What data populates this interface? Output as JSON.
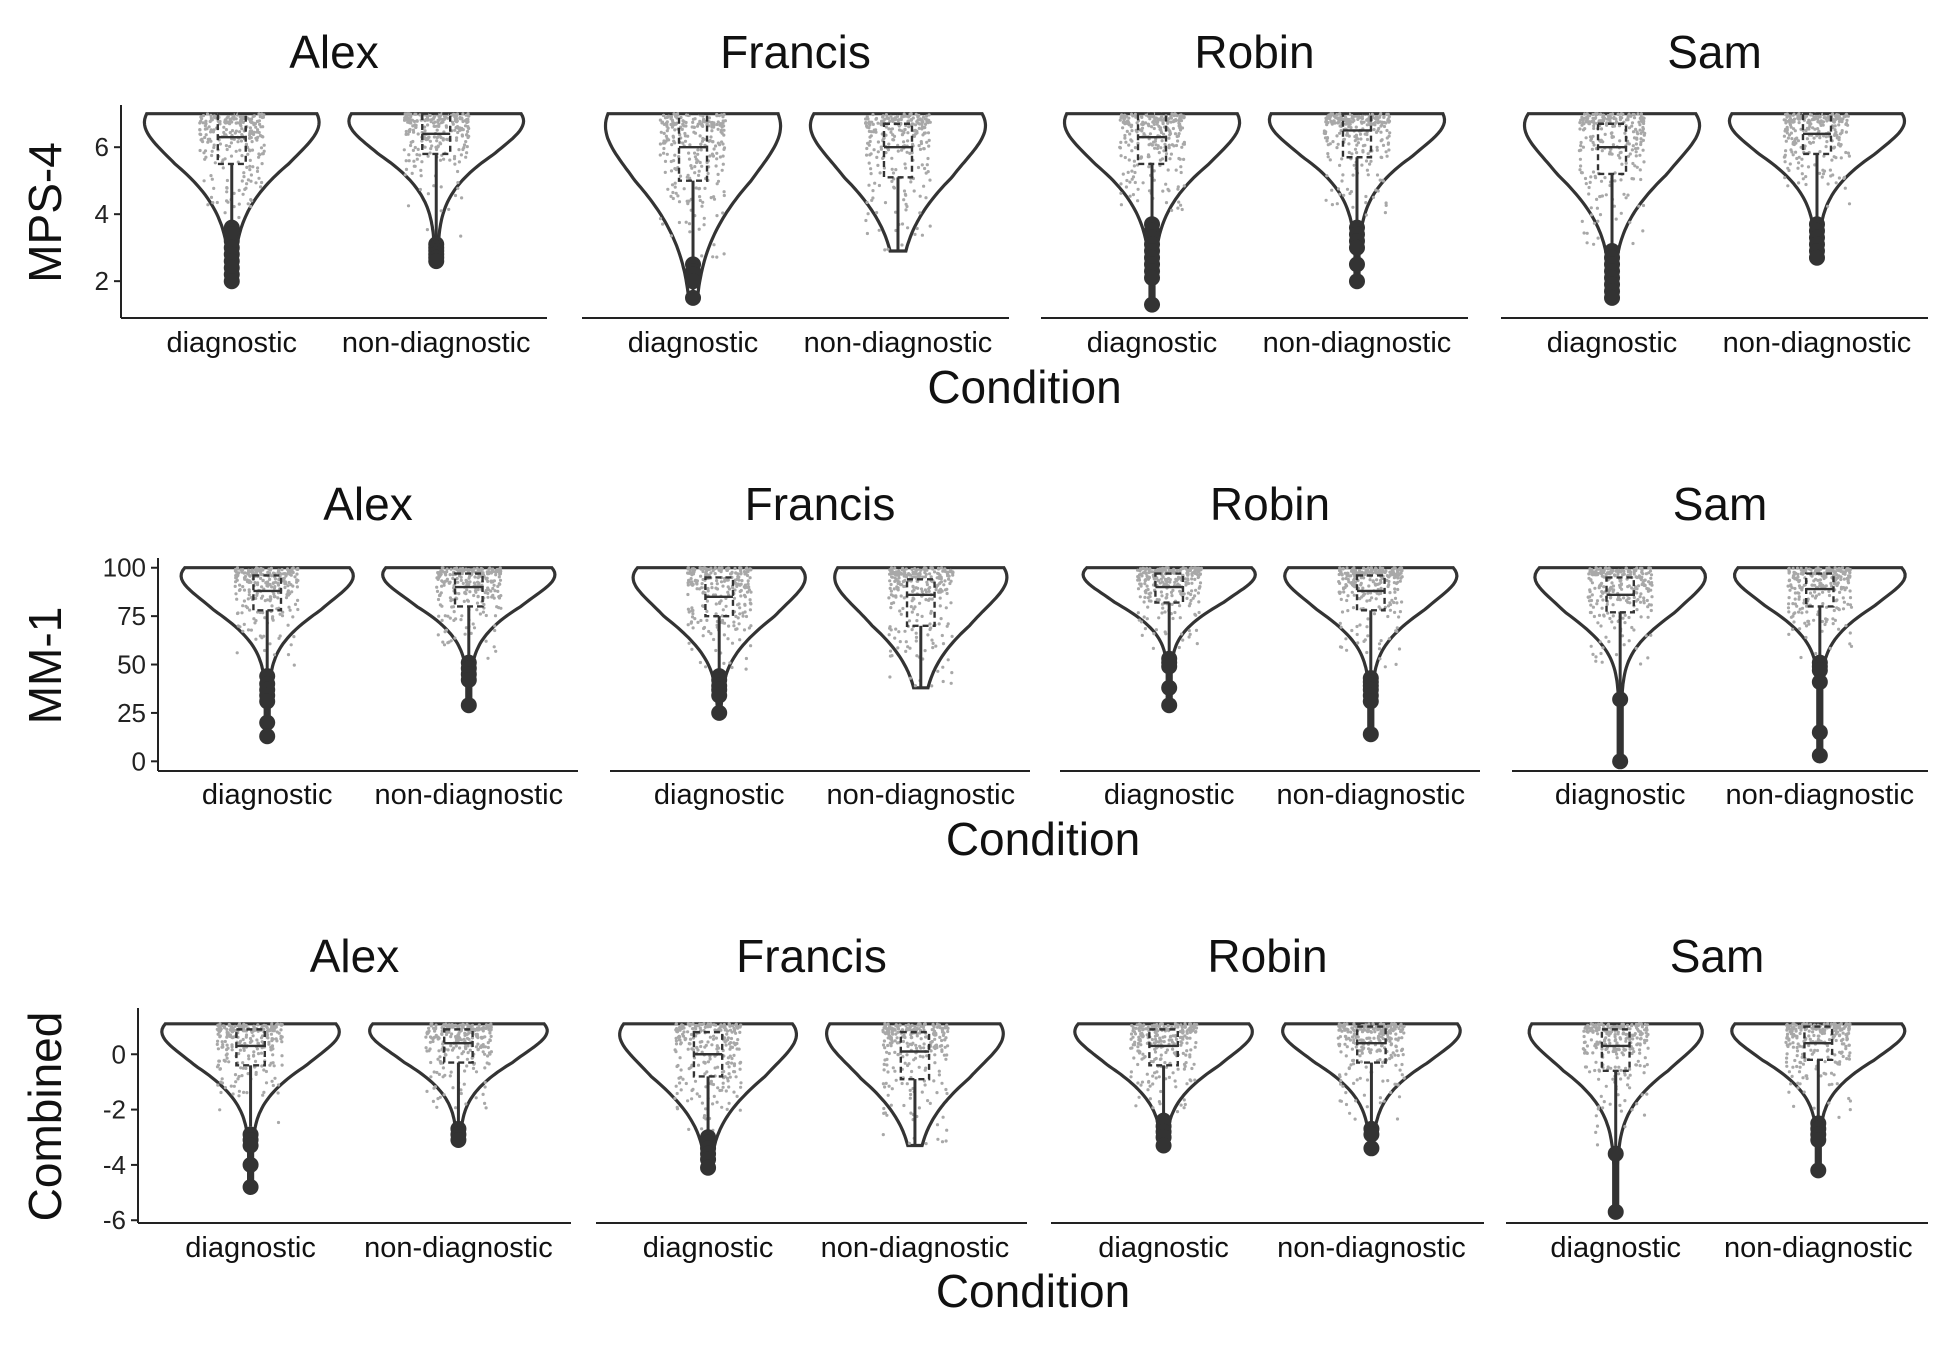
{
  "chart_data": [
    {
      "type": "violin",
      "ylabel": "MPS-4",
      "xlabel": "Condition",
      "ylim": [
        0.9,
        7.2
      ],
      "yticks": [
        2,
        4,
        6
      ],
      "categories": [
        "diagnostic",
        "non-diagnostic"
      ],
      "facets": [
        {
          "title": "Alex",
          "groups": [
            {
              "category": "diagnostic",
              "max": 7,
              "q3": 7,
              "median": 6.3,
              "q1": 5.5,
              "lower_whisker": 3.8,
              "outliers": [
                3.6,
                3.4,
                3.2,
                3.0,
                2.8,
                2.6,
                2.4,
                2.2,
                2.0
              ]
            },
            {
              "category": "non-diagnostic",
              "max": 7,
              "q3": 7,
              "median": 6.4,
              "q1": 5.8,
              "lower_whisker": 3.3,
              "outliers": [
                3.1,
                3.0,
                2.9,
                2.8,
                2.7,
                2.6
              ]
            }
          ]
        },
        {
          "title": "Francis",
          "groups": [
            {
              "category": "diagnostic",
              "max": 7,
              "q3": 7,
              "median": 6.0,
              "q1": 5.0,
              "lower_whisker": 2.6,
              "outliers": [
                2.5,
                2.3,
                2.2,
                2.0,
                1.5
              ]
            },
            {
              "category": "non-diagnostic",
              "max": 7,
              "q3": 6.7,
              "median": 6.0,
              "q1": 5.1,
              "lower_whisker": 2.9,
              "outliers": []
            }
          ]
        },
        {
          "title": "Robin",
          "groups": [
            {
              "category": "diagnostic",
              "max": 7,
              "q3": 7,
              "median": 6.3,
              "q1": 5.5,
              "lower_whisker": 3.9,
              "outliers": [
                3.7,
                3.5,
                3.3,
                3.1,
                2.9,
                2.7,
                2.5,
                2.3,
                2.1,
                1.3
              ]
            },
            {
              "category": "non-diagnostic",
              "max": 7,
              "q3": 7,
              "median": 6.5,
              "q1": 5.7,
              "lower_whisker": 3.8,
              "outliers": [
                3.6,
                3.4,
                3.2,
                3.0,
                2.5,
                2.0
              ]
            }
          ]
        },
        {
          "title": "Sam",
          "groups": [
            {
              "category": "diagnostic",
              "max": 7,
              "q3": 6.7,
              "median": 6.0,
              "q1": 5.2,
              "lower_whisker": 3.1,
              "outliers": [
                2.9,
                2.7,
                2.5,
                2.3,
                2.1,
                1.9,
                1.7,
                1.5
              ]
            },
            {
              "category": "non-diagnostic",
              "max": 7,
              "q3": 7,
              "median": 6.4,
              "q1": 5.8,
              "lower_whisker": 3.9,
              "outliers": [
                3.7,
                3.5,
                3.3,
                3.1,
                2.9,
                2.7
              ]
            }
          ]
        }
      ]
    },
    {
      "type": "violin",
      "ylabel": "MM-1",
      "xlabel": "Condition",
      "ylim": [
        -5,
        104
      ],
      "yticks": [
        0,
        25,
        50,
        75,
        100
      ],
      "categories": [
        "diagnostic",
        "non-diagnostic"
      ],
      "facets": [
        {
          "title": "Alex",
          "groups": [
            {
              "category": "diagnostic",
              "max": 100,
              "q3": 96,
              "median": 88,
              "q1": 78,
              "lower_whisker": 48,
              "outliers": [
                44,
                40,
                37,
                34,
                31,
                20,
                13
              ]
            },
            {
              "category": "non-diagnostic",
              "max": 100,
              "q3": 97,
              "median": 90,
              "q1": 80,
              "lower_whisker": 53,
              "outliers": [
                51,
                48,
                45,
                42,
                29
              ]
            }
          ]
        },
        {
          "title": "Francis",
          "groups": [
            {
              "category": "diagnostic",
              "max": 100,
              "q3": 95,
              "median": 85,
              "q1": 75,
              "lower_whisker": 46,
              "outliers": [
                44,
                42,
                39,
                37,
                34,
                25
              ]
            },
            {
              "category": "non-diagnostic",
              "max": 100,
              "q3": 94,
              "median": 86,
              "q1": 70,
              "lower_whisker": 38,
              "outliers": []
            }
          ]
        },
        {
          "title": "Robin",
          "groups": [
            {
              "category": "diagnostic",
              "max": 100,
              "q3": 97,
              "median": 90,
              "q1": 82,
              "lower_whisker": 55,
              "outliers": [
                53,
                51,
                49,
                38,
                29
              ]
            },
            {
              "category": "non-diagnostic",
              "max": 100,
              "q3": 96,
              "median": 88,
              "q1": 78,
              "lower_whisker": 45,
              "outliers": [
                43,
                41,
                39,
                37,
                34,
                31,
                14
              ]
            }
          ]
        },
        {
          "title": "Sam",
          "groups": [
            {
              "category": "diagnostic",
              "max": 100,
              "q3": 95,
              "median": 86,
              "q1": 77,
              "lower_whisker": 50,
              "outliers": [
                32,
                0
              ]
            },
            {
              "category": "non-diagnostic",
              "max": 100,
              "q3": 97,
              "median": 89,
              "q1": 80,
              "lower_whisker": 53,
              "outliers": [
                51,
                49,
                47,
                41,
                15,
                3
              ]
            }
          ]
        }
      ]
    },
    {
      "type": "violin",
      "ylabel": "Combined",
      "xlabel": "Condition",
      "ylim": [
        -6.1,
        1.6
      ],
      "yticks": [
        -6,
        -4,
        -2,
        0
      ],
      "categories": [
        "diagnostic",
        "non-diagnostic"
      ],
      "facets": [
        {
          "title": "Alex",
          "groups": [
            {
              "category": "diagnostic",
              "max": 1.1,
              "q3": 0.9,
              "median": 0.3,
              "q1": -0.4,
              "lower_whisker": -2.6,
              "outliers": [
                -2.9,
                -3.1,
                -3.3,
                -4.0,
                -4.8
              ]
            },
            {
              "category": "non-diagnostic",
              "max": 1.1,
              "q3": 0.9,
              "median": 0.4,
              "q1": -0.3,
              "lower_whisker": -2.5,
              "outliers": [
                -2.7,
                -2.9,
                -3.1
              ]
            }
          ]
        },
        {
          "title": "Francis",
          "groups": [
            {
              "category": "diagnostic",
              "max": 1.1,
              "q3": 0.8,
              "median": 0.0,
              "q1": -0.8,
              "lower_whisker": -2.8,
              "outliers": [
                -3.0,
                -3.2,
                -3.4,
                -3.6,
                -3.8,
                -4.1
              ]
            },
            {
              "category": "non-diagnostic",
              "max": 1.1,
              "q3": 0.8,
              "median": 0.1,
              "q1": -0.9,
              "lower_whisker": -3.3,
              "outliers": []
            }
          ]
        },
        {
          "title": "Robin",
          "groups": [
            {
              "category": "diagnostic",
              "max": 1.1,
              "q3": 0.9,
              "median": 0.3,
              "q1": -0.4,
              "lower_whisker": -2.2,
              "outliers": [
                -2.4,
                -2.6,
                -2.8,
                -3.0,
                -3.3
              ]
            },
            {
              "category": "non-diagnostic",
              "max": 1.1,
              "q3": 1.0,
              "median": 0.4,
              "q1": -0.3,
              "lower_whisker": -2.5,
              "outliers": [
                -2.7,
                -2.9,
                -3.4
              ]
            }
          ]
        },
        {
          "title": "Sam",
          "groups": [
            {
              "category": "diagnostic",
              "max": 1.1,
              "q3": 0.9,
              "median": 0.3,
              "q1": -0.6,
              "lower_whisker": -3.5,
              "outliers": [
                -3.6,
                -5.7
              ]
            },
            {
              "category": "non-diagnostic",
              "max": 1.1,
              "q3": 1.0,
              "median": 0.4,
              "q1": -0.2,
              "lower_whisker": -2.3,
              "outliers": [
                -2.5,
                -2.7,
                -2.9,
                -3.1,
                -4.2
              ]
            }
          ]
        }
      ]
    }
  ]
}
